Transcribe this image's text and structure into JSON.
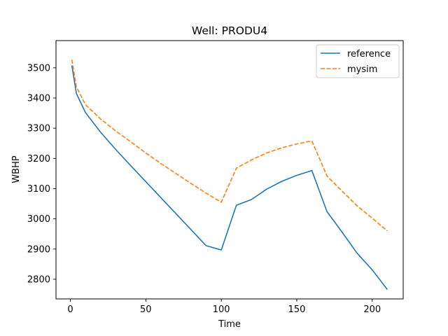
{
  "chart_data": {
    "type": "line",
    "title": "Well: PRODU4",
    "xlabel": "Time",
    "ylabel": "WBHP",
    "xlim": [
      -9.5,
      220.5
    ],
    "ylim": [
      2735,
      3590
    ],
    "xticks": [
      0,
      50,
      100,
      150,
      200
    ],
    "yticks": [
      2800,
      2900,
      3000,
      3100,
      3200,
      3300,
      3400,
      3500
    ],
    "grid": false,
    "legend_position": "top-right",
    "series": [
      {
        "name": "reference",
        "color": "#1f77b4",
        "style": "solid",
        "x": [
          1,
          4,
          10,
          20,
          30,
          40,
          50,
          60,
          70,
          80,
          90,
          100,
          110,
          120,
          130,
          140,
          150,
          160,
          170,
          180,
          190,
          200,
          210
        ],
        "y": [
          3508,
          3415,
          3352,
          3287,
          3230,
          3176,
          3123,
          3070,
          3017,
          2964,
          2911,
          2897,
          3045,
          3064,
          3098,
          3124,
          3144,
          3160,
          3024,
          2956,
          2886,
          2831,
          2766
        ]
      },
      {
        "name": "mysim",
        "color": "#ff7f0e",
        "style": "dashed",
        "x": [
          1,
          4,
          10,
          20,
          30,
          40,
          50,
          60,
          70,
          80,
          90,
          100,
          110,
          120,
          130,
          140,
          150,
          160,
          170,
          180,
          190,
          200,
          210
        ],
        "y": [
          3527,
          3437,
          3378,
          3331,
          3291,
          3255,
          3218,
          3183,
          3150,
          3117,
          3085,
          3055,
          3168,
          3195,
          3218,
          3235,
          3248,
          3258,
          3142,
          3092,
          3043,
          3002,
          2960
        ]
      }
    ]
  }
}
